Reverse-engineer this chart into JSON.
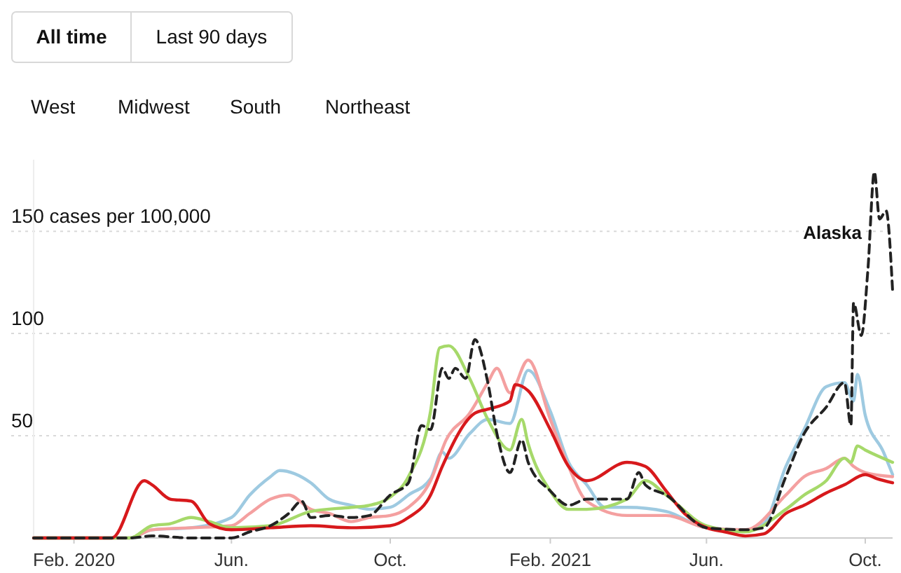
{
  "chart_data": {
    "type": "line",
    "xlim": [
      "2020-01-01",
      "2021-10-22"
    ],
    "ylim": [
      0,
      185
    ],
    "xticks": [
      {
        "value": "2020-02-01",
        "label": "Feb. 2020"
      },
      {
        "value": "2020-06-01",
        "label": "Jun."
      },
      {
        "value": "2020-10-01",
        "label": "Oct."
      },
      {
        "value": "2021-02-01",
        "label": "Feb. 2021"
      },
      {
        "value": "2021-06-01",
        "label": "Jun."
      },
      {
        "value": "2021-10-01",
        "label": "Oct."
      }
    ],
    "yticks": [
      50,
      100,
      {
        "value": 150,
        "label": "150 cases per 100,000"
      }
    ],
    "grid": "y",
    "line_style": "solid",
    "annotations": [
      "All time",
      "Last 90 days",
      "West",
      "Midwest",
      "South",
      "Northeast"
    ],
    "series": [
      {
        "color": "#9ecae1",
        "x": [
          "2020-01-01",
          "2020-03-15",
          "2020-04-01",
          "2020-05-01",
          "2020-06-01",
          "2020-06-15",
          "2020-07-01",
          "2020-07-08",
          "2020-08-01",
          "2020-08-15",
          "2020-09-01",
          "2020-09-15",
          "2020-10-01",
          "2020-10-15",
          "2020-11-01",
          "2020-11-10",
          "2020-11-15",
          "2020-12-01",
          "2020-12-15",
          "2021-01-01",
          "2021-01-15",
          "2021-02-01",
          "2021-02-15",
          "2021-03-01",
          "2021-03-15",
          "2021-04-01",
          "2021-05-01",
          "2021-06-01",
          "2021-07-01",
          "2021-07-15",
          "2021-08-01",
          "2021-08-15",
          "2021-09-01",
          "2021-09-15",
          "2021-09-22",
          "2021-09-25",
          "2021-10-01",
          "2021-10-15",
          "2021-10-22"
        ],
        "values": [
          0,
          0,
          4,
          5,
          10,
          21,
          30,
          33,
          27,
          19,
          16,
          14,
          15,
          21,
          29,
          42,
          39,
          51,
          58,
          56,
          82,
          62,
          37,
          26,
          15,
          15,
          13,
          5,
          4,
          7,
          35,
          53,
          74,
          76,
          67,
          80,
          60,
          42,
          31
        ]
      },
      {
        "color": "#f4a0a0",
        "x": [
          "2020-01-01",
          "2020-03-15",
          "2020-04-01",
          "2020-05-01",
          "2020-06-01",
          "2020-06-15",
          "2020-07-01",
          "2020-07-15",
          "2020-08-01",
          "2020-08-15",
          "2020-09-01",
          "2020-09-15",
          "2020-10-01",
          "2020-10-15",
          "2020-11-01",
          "2020-11-13",
          "2020-12-01",
          "2020-12-15",
          "2020-12-22",
          "2021-01-01",
          "2021-01-15",
          "2021-02-01",
          "2021-02-15",
          "2021-03-01",
          "2021-04-01",
          "2021-05-01",
          "2021-06-01",
          "2021-07-01",
          "2021-08-01",
          "2021-08-15",
          "2021-09-01",
          "2021-09-15",
          "2021-09-22",
          "2021-10-01",
          "2021-10-22"
        ],
        "values": [
          0,
          0,
          4,
          5,
          6,
          12,
          19,
          21,
          14,
          12,
          8,
          10,
          11,
          15,
          28,
          48,
          61,
          76,
          83,
          71,
          87,
          58,
          35,
          18,
          11,
          11,
          5,
          4,
          21,
          30,
          34,
          39,
          35,
          32,
          30
        ]
      },
      {
        "color": "#a6d96a",
        "x": [
          "2020-01-01",
          "2020-03-15",
          "2020-04-01",
          "2020-04-15",
          "2020-05-01",
          "2020-05-15",
          "2020-06-01",
          "2020-07-01",
          "2020-08-01",
          "2020-09-01",
          "2020-09-15",
          "2020-10-01",
          "2020-10-15",
          "2020-11-01",
          "2020-11-08",
          "2020-11-15",
          "2020-12-01",
          "2020-12-15",
          "2021-01-01",
          "2021-01-10",
          "2021-01-15",
          "2021-02-01",
          "2021-02-15",
          "2021-03-01",
          "2021-04-01",
          "2021-04-15",
          "2021-05-01",
          "2021-06-01",
          "2021-07-01",
          "2021-08-01",
          "2021-08-15",
          "2021-09-01",
          "2021-09-15",
          "2021-09-20",
          "2021-09-25",
          "2021-10-01",
          "2021-10-22"
        ],
        "values": [
          0,
          0,
          6,
          7,
          10,
          8,
          5,
          6,
          13,
          15,
          16,
          20,
          30,
          62,
          93,
          94,
          78,
          58,
          43,
          58,
          46,
          23,
          14,
          14,
          19,
          28,
          21,
          6,
          3,
          14,
          21,
          28,
          39,
          37,
          45,
          43,
          37
        ]
      },
      {
        "color": "#d7191c",
        "x": [
          "2020-01-01",
          "2020-03-01",
          "2020-03-26",
          "2020-04-01",
          "2020-04-15",
          "2020-05-01",
          "2020-05-15",
          "2020-06-01",
          "2020-07-01",
          "2020-08-01",
          "2020-09-01",
          "2020-10-01",
          "2020-10-15",
          "2020-11-01",
          "2020-11-10",
          "2020-12-05",
          "2020-12-15",
          "2021-01-01",
          "2021-01-05",
          "2021-01-15",
          "2021-02-01",
          "2021-02-15",
          "2021-03-01",
          "2021-04-01",
          "2021-04-15",
          "2021-05-01",
          "2021-05-15",
          "2021-06-01",
          "2021-06-15",
          "2021-07-01",
          "2021-07-15",
          "2021-08-01",
          "2021-08-15",
          "2021-09-01",
          "2021-09-15",
          "2021-10-01",
          "2021-10-10",
          "2021-10-22"
        ],
        "values": [
          0,
          0,
          28,
          26,
          19,
          18,
          7,
          4,
          5,
          6,
          5,
          6,
          10,
          21,
          35,
          61,
          63,
          67,
          75,
          72,
          53,
          35,
          28,
          37,
          35,
          23,
          12,
          5,
          3,
          1,
          2,
          12,
          16,
          22,
          26,
          31,
          29,
          27
        ]
      },
      {
        "name": "Alaska",
        "color": "#222222",
        "line_style": "dashed",
        "x": [
          "2020-01-01",
          "2020-03-15",
          "2020-04-01",
          "2020-05-01",
          "2020-06-01",
          "2020-06-15",
          "2020-07-01",
          "2020-07-15",
          "2020-07-25",
          "2020-08-01",
          "2020-08-15",
          "2020-09-01",
          "2020-09-15",
          "2020-10-01",
          "2020-10-15",
          "2020-10-25",
          "2020-11-01",
          "2020-11-10",
          "2020-11-15",
          "2020-11-20",
          "2020-11-28",
          "2020-12-05",
          "2020-12-15",
          "2020-12-22",
          "2021-01-01",
          "2021-01-10",
          "2021-01-15",
          "2021-02-01",
          "2021-02-15",
          "2021-03-01",
          "2021-03-15",
          "2021-04-01",
          "2021-04-10",
          "2021-04-15",
          "2021-05-01",
          "2021-06-01",
          "2021-07-01",
          "2021-07-15",
          "2021-08-01",
          "2021-08-15",
          "2021-09-01",
          "2021-09-15",
          "2021-09-20",
          "2021-09-22",
          "2021-09-28",
          "2021-10-03",
          "2021-10-08",
          "2021-10-12",
          "2021-10-17",
          "2021-10-22"
        ],
        "values": [
          0,
          0,
          1,
          0,
          0,
          3,
          6,
          12,
          18,
          10,
          11,
          10,
          11,
          21,
          27,
          55,
          53,
          83,
          78,
          83,
          78,
          97,
          76,
          51,
          32,
          48,
          37,
          23,
          16,
          19,
          19,
          19,
          32,
          26,
          21,
          5,
          4,
          5,
          30,
          51,
          64,
          76,
          55,
          115,
          99,
          131,
          179,
          156,
          160,
          121
        ]
      }
    ]
  }
}
